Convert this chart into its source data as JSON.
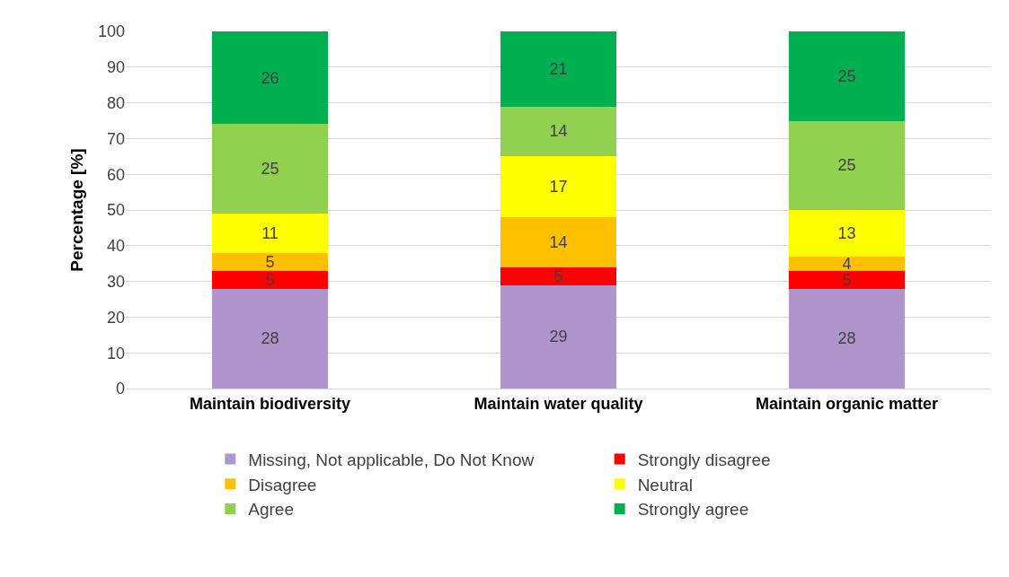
{
  "chart_data": {
    "type": "bar",
    "stacked": true,
    "ylabel": "Percentage [%]",
    "categories": [
      "Maintain biodiversity",
      "Maintain water quality",
      "Maintain organic matter"
    ],
    "series": [
      {
        "name": "Missing, Not applicable, Do Not Know",
        "color": "#b094cc",
        "values": [
          28,
          29,
          28
        ]
      },
      {
        "name": "Strongly disagree",
        "color": "#ff0000",
        "values": [
          5,
          5,
          5
        ]
      },
      {
        "name": "Disagree",
        "color": "#ffc000",
        "values": [
          5,
          14,
          4
        ]
      },
      {
        "name": "Neutral",
        "color": "#ffff00",
        "values": [
          11,
          17,
          13
        ]
      },
      {
        "name": "Agree",
        "color": "#92d050",
        "values": [
          25,
          14,
          25
        ]
      },
      {
        "name": "Strongly agree",
        "color": "#00b050",
        "values": [
          26,
          21,
          25
        ]
      }
    ],
    "ylim": [
      0,
      100
    ],
    "yticks": [
      0,
      10,
      20,
      30,
      40,
      50,
      60,
      70,
      80,
      90,
      100
    ],
    "grid": "y",
    "legend": "bottom",
    "data_labels": true
  }
}
